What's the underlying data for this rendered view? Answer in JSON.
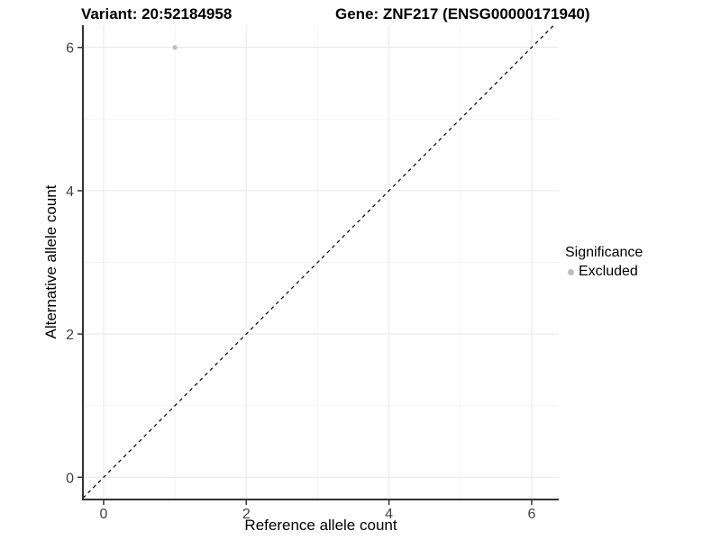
{
  "chart_data": {
    "type": "scatter",
    "title_left": "Variant: 20:52184958",
    "title_right": "Gene: ZNF217 (ENSG00000171940)",
    "xlabel": "Reference allele count",
    "ylabel": "Alternative allele count",
    "xlim": [
      -0.29,
      6.38
    ],
    "ylim": [
      -0.31,
      6.31
    ],
    "x_ticks": [
      0,
      2,
      4,
      6
    ],
    "y_ticks": [
      0,
      2,
      4,
      6
    ],
    "x_minor_ticks": [
      1,
      3,
      5
    ],
    "y_minor_ticks": [
      1,
      3,
      5
    ],
    "grid": "on",
    "points": [
      {
        "x": 1,
        "y": 6,
        "series": "Excluded"
      }
    ],
    "reference_line": {
      "kind": "identity y=x",
      "style": "dashed",
      "color": "#000000"
    },
    "legend": {
      "position": "right",
      "title": "Significance",
      "items": [
        {
          "label": "Excluded",
          "color": "#bdbdbd"
        }
      ]
    },
    "colors": {
      "point": "#bdbdbd",
      "grid_major": "#e8e8e8",
      "grid_minor": "#f3f3f3",
      "axis_line": "#333333",
      "tick_text": "#404040",
      "background": "#ffffff"
    }
  }
}
